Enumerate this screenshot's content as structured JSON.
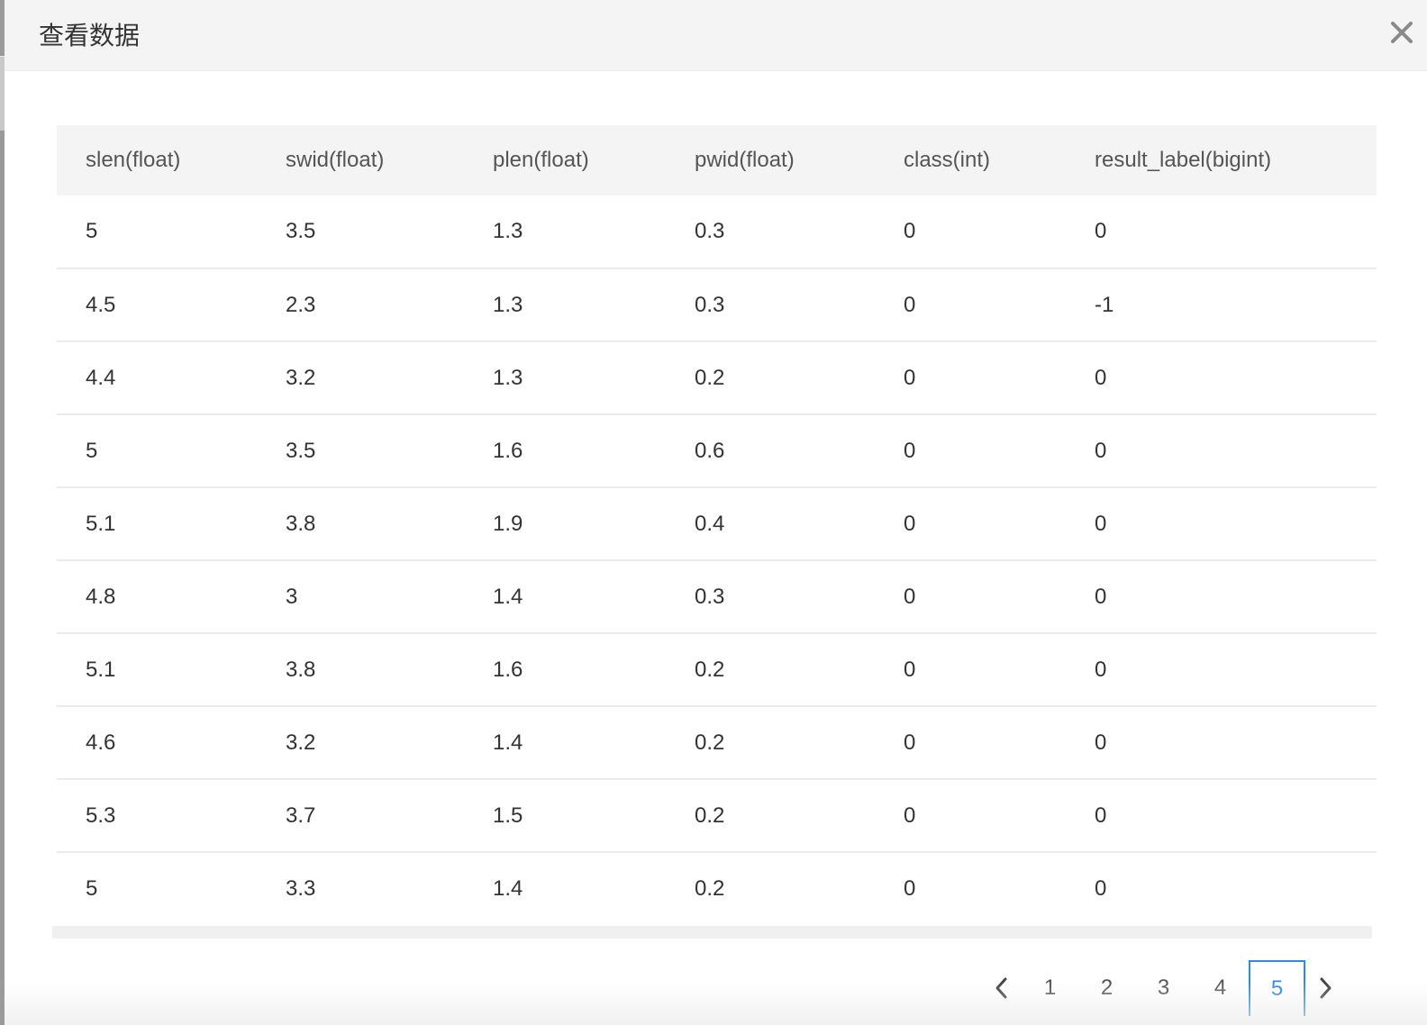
{
  "dialog": {
    "title": "查看数据"
  },
  "table": {
    "columns": [
      "slen(float)",
      "swid(float)",
      "plen(float)",
      "pwid(float)",
      "class(int)",
      "result_label(bigint)"
    ],
    "rows": [
      [
        "5",
        "3.5",
        "1.3",
        "0.3",
        "0",
        "0"
      ],
      [
        "4.5",
        "2.3",
        "1.3",
        "0.3",
        "0",
        "-1"
      ],
      [
        "4.4",
        "3.2",
        "1.3",
        "0.2",
        "0",
        "0"
      ],
      [
        "5",
        "3.5",
        "1.6",
        "0.6",
        "0",
        "0"
      ],
      [
        "5.1",
        "3.8",
        "1.9",
        "0.4",
        "0",
        "0"
      ],
      [
        "4.8",
        "3",
        "1.4",
        "0.3",
        "0",
        "0"
      ],
      [
        "5.1",
        "3.8",
        "1.6",
        "0.2",
        "0",
        "0"
      ],
      [
        "4.6",
        "3.2",
        "1.4",
        "0.2",
        "0",
        "0"
      ],
      [
        "5.3",
        "3.7",
        "1.5",
        "0.2",
        "0",
        "0"
      ],
      [
        "5",
        "3.3",
        "1.4",
        "0.2",
        "0",
        "0"
      ]
    ]
  },
  "pagination": {
    "prev_icon": "chevron-left-icon",
    "next_icon": "chevron-right-icon",
    "pages": [
      "1",
      "2",
      "3",
      "4",
      "5"
    ],
    "current_page": "5"
  },
  "colors": {
    "accent": "#2f8ae3",
    "header_bg": "#f4f4f4",
    "row_divider": "#ebebeb"
  }
}
